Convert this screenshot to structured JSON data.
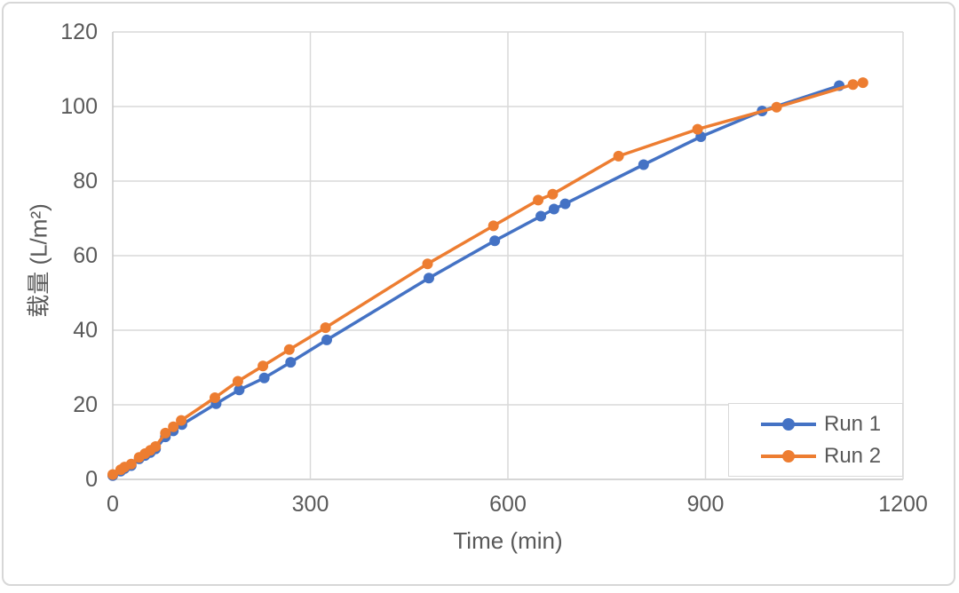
{
  "chart": {
    "background": "#FFFFFF",
    "frame_border_color": "#D7D7D7",
    "grid_color": "#D9D9D9",
    "axis_line_color": "#C9C9C9",
    "text_color": "#595959"
  },
  "legend": {
    "items": [
      {
        "label": "Run 1",
        "color": "#4472C4"
      },
      {
        "label": "Run 2",
        "color": "#ED7D31"
      }
    ]
  },
  "chart_data": {
    "type": "line",
    "title": "",
    "xlabel": "Time (min)",
    "ylabel": "载量 (L/m²)",
    "xlim": [
      0,
      1200
    ],
    "ylim": [
      0,
      120
    ],
    "x_ticks": [
      0,
      300,
      600,
      900,
      1200
    ],
    "y_ticks": [
      0,
      20,
      40,
      60,
      80,
      100,
      120
    ],
    "grid": "horizontal-and-vertical",
    "legend_position": "inside-bottom-right",
    "marker": "circle",
    "series": [
      {
        "name": "Run 1",
        "color": "#4472C4",
        "points": [
          [
            0,
            1.0
          ],
          [
            12,
            2.2
          ],
          [
            18,
            2.9
          ],
          [
            28,
            3.7
          ],
          [
            40,
            5.5
          ],
          [
            49,
            6.4
          ],
          [
            57,
            7.2
          ],
          [
            65,
            8.2
          ],
          [
            80,
            11.4
          ],
          [
            92,
            13.0
          ],
          [
            105,
            14.7
          ],
          [
            157,
            20.3
          ],
          [
            192,
            24.0
          ],
          [
            230,
            27.2
          ],
          [
            270,
            31.4
          ],
          [
            325,
            37.4
          ],
          [
            480,
            54.0
          ],
          [
            580,
            64.0
          ],
          [
            650,
            70.6
          ],
          [
            670,
            72.5
          ],
          [
            687,
            73.9
          ],
          [
            806,
            84.4
          ],
          [
            893,
            91.9
          ],
          [
            986,
            98.8
          ],
          [
            1103,
            105.6
          ]
        ]
      },
      {
        "name": "Run 2",
        "color": "#ED7D31",
        "points": [
          [
            0,
            1.3
          ],
          [
            12,
            2.6
          ],
          [
            18,
            3.3
          ],
          [
            28,
            4.1
          ],
          [
            40,
            5.9
          ],
          [
            49,
            6.9
          ],
          [
            57,
            7.8
          ],
          [
            65,
            8.8
          ],
          [
            80,
            12.4
          ],
          [
            92,
            14.1
          ],
          [
            104,
            15.8
          ],
          [
            155,
            21.9
          ],
          [
            190,
            26.3
          ],
          [
            228,
            30.4
          ],
          [
            268,
            34.8
          ],
          [
            323,
            40.7
          ],
          [
            478,
            57.8
          ],
          [
            578,
            68.0
          ],
          [
            646,
            74.9
          ],
          [
            668,
            76.5
          ],
          [
            768,
            86.7
          ],
          [
            888,
            93.9
          ],
          [
            1008,
            99.8
          ],
          [
            1124,
            105.9
          ],
          [
            1139,
            106.4
          ]
        ]
      }
    ]
  }
}
